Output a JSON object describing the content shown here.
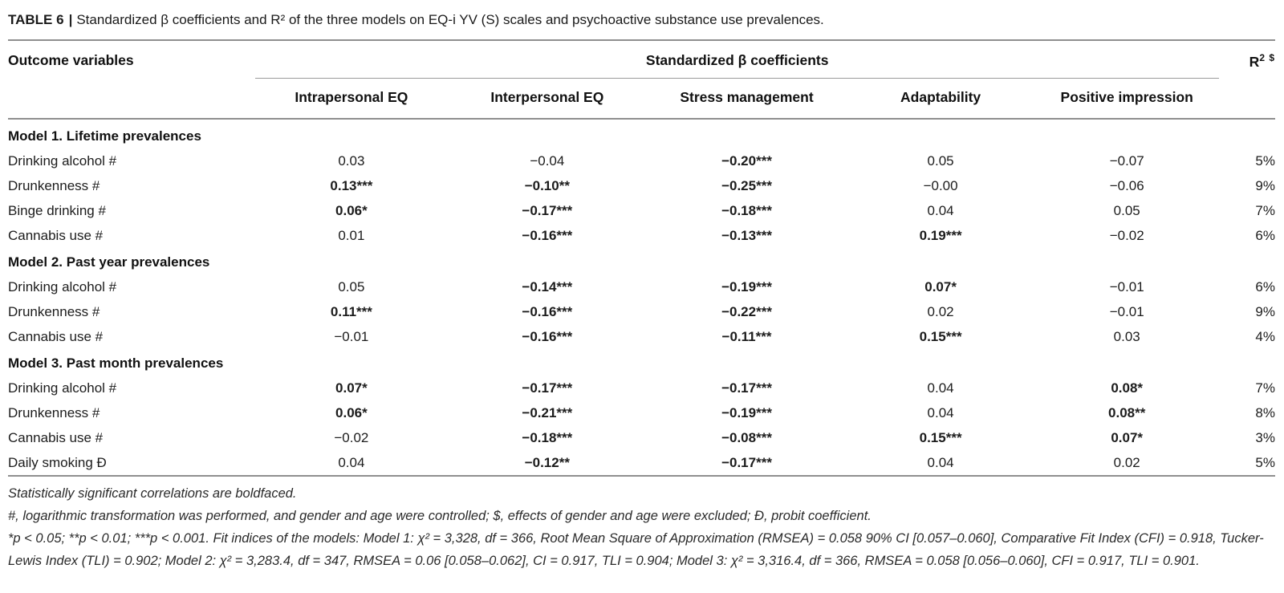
{
  "caption": {
    "label": "TABLE 6",
    "separator": "|",
    "text": "Standardized β coefficients and R² of the three models on EQ-i YV (S) scales and psychoactive substance use prevalences."
  },
  "table": {
    "outcome_header": "Outcome variables",
    "span_header": "Standardized β coefficients",
    "r2_header": {
      "base": "R",
      "sup": "2 $"
    },
    "subheaders": [
      "Intrapersonal EQ",
      "Interpersonal EQ",
      "Stress management",
      "Adaptability",
      "Positive impression"
    ],
    "rows": [
      {
        "type": "section",
        "label": "Model 1. Lifetime prevalences"
      },
      {
        "type": "data",
        "label": "Drinking alcohol #",
        "cells": [
          {
            "v": "0.03",
            "b": false
          },
          {
            "v": "−0.04",
            "b": false
          },
          {
            "v": "−0.20***",
            "b": true
          },
          {
            "v": "0.05",
            "b": false
          },
          {
            "v": "−0.07",
            "b": false
          }
        ],
        "r2": "5%"
      },
      {
        "type": "data",
        "label": "Drunkenness #",
        "cells": [
          {
            "v": "0.13***",
            "b": true
          },
          {
            "v": "−0.10**",
            "b": true
          },
          {
            "v": "−0.25***",
            "b": true
          },
          {
            "v": "−0.00",
            "b": false
          },
          {
            "v": "−0.06",
            "b": false
          }
        ],
        "r2": "9%"
      },
      {
        "type": "data",
        "label": "Binge drinking #",
        "cells": [
          {
            "v": "0.06*",
            "b": true
          },
          {
            "v": "−0.17***",
            "b": true
          },
          {
            "v": "−0.18***",
            "b": true
          },
          {
            "v": "0.04",
            "b": false
          },
          {
            "v": "0.05",
            "b": false
          }
        ],
        "r2": "7%"
      },
      {
        "type": "data",
        "label": "Cannabis use #",
        "cells": [
          {
            "v": "0.01",
            "b": false
          },
          {
            "v": "−0.16***",
            "b": true
          },
          {
            "v": "−0.13***",
            "b": true
          },
          {
            "v": "0.19***",
            "b": true
          },
          {
            "v": "−0.02",
            "b": false
          }
        ],
        "r2": "6%"
      },
      {
        "type": "section",
        "label": "Model 2. Past year prevalences"
      },
      {
        "type": "data",
        "label": "Drinking alcohol #",
        "cells": [
          {
            "v": "0.05",
            "b": false
          },
          {
            "v": "−0.14***",
            "b": true
          },
          {
            "v": "−0.19***",
            "b": true
          },
          {
            "v": "0.07*",
            "b": true
          },
          {
            "v": "−0.01",
            "b": false
          }
        ],
        "r2": "6%"
      },
      {
        "type": "data",
        "label": "Drunkenness #",
        "cells": [
          {
            "v": "0.11***",
            "b": true
          },
          {
            "v": "−0.16***",
            "b": true
          },
          {
            "v": "−0.22***",
            "b": true
          },
          {
            "v": "0.02",
            "b": false
          },
          {
            "v": "−0.01",
            "b": false
          }
        ],
        "r2": "9%"
      },
      {
        "type": "data",
        "label": "Cannabis use #",
        "cells": [
          {
            "v": "−0.01",
            "b": false
          },
          {
            "v": "−0.16***",
            "b": true
          },
          {
            "v": "−0.11***",
            "b": true
          },
          {
            "v": "0.15***",
            "b": true
          },
          {
            "v": "0.03",
            "b": false
          }
        ],
        "r2": "4%"
      },
      {
        "type": "section",
        "label": "Model 3. Past month prevalences"
      },
      {
        "type": "data",
        "label": "Drinking alcohol #",
        "cells": [
          {
            "v": "0.07*",
            "b": true
          },
          {
            "v": "−0.17***",
            "b": true
          },
          {
            "v": "−0.17***",
            "b": true
          },
          {
            "v": "0.04",
            "b": false
          },
          {
            "v": "0.08*",
            "b": true
          }
        ],
        "r2": "7%"
      },
      {
        "type": "data",
        "label": "Drunkenness #",
        "cells": [
          {
            "v": "0.06*",
            "b": true
          },
          {
            "v": "−0.21***",
            "b": true
          },
          {
            "v": "−0.19***",
            "b": true
          },
          {
            "v": "0.04",
            "b": false
          },
          {
            "v": "0.08**",
            "b": true
          }
        ],
        "r2": "8%"
      },
      {
        "type": "data",
        "label": "Cannabis use #",
        "cells": [
          {
            "v": "−0.02",
            "b": false
          },
          {
            "v": "−0.18***",
            "b": true
          },
          {
            "v": "−0.08***",
            "b": true
          },
          {
            "v": "0.15***",
            "b": true
          },
          {
            "v": "0.07*",
            "b": true
          }
        ],
        "r2": "3%"
      },
      {
        "type": "data",
        "label": "Daily smoking Ð",
        "cells": [
          {
            "v": "0.04",
            "b": false
          },
          {
            "v": "−0.12**",
            "b": true
          },
          {
            "v": "−0.17***",
            "b": true
          },
          {
            "v": "0.04",
            "b": false
          },
          {
            "v": "0.02",
            "b": false
          }
        ],
        "r2": "5%"
      }
    ]
  },
  "footnotes": [
    "Statistically significant correlations are boldfaced.",
    "#, logarithmic transformation was performed, and gender and age were controlled; $, effects of gender and age were excluded; Ð, probit coefficient.",
    "*p < 0.05; **p < 0.01; ***p < 0.001. Fit indices of the models: Model 1: χ² = 3,328, df = 366, Root Mean Square of Approximation (RMSEA) = 0.058 90% CI [0.057–0.060], Comparative Fit Index (CFI) = 0.918, Tucker-Lewis Index (TLI) = 0.902; Model 2: χ² = 3,283.4, df = 347, RMSEA = 0.06 [0.058–0.062], CI = 0.917, TLI = 0.904; Model 3: χ² = 3,316.4, df = 366, RMSEA = 0.058 [0.056–0.060], CFI = 0.917, TLI = 0.901."
  ]
}
